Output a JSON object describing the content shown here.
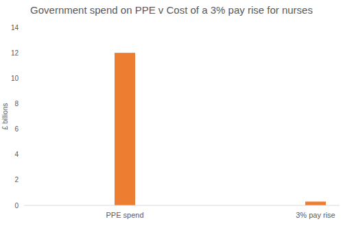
{
  "chart_data": {
    "type": "bar",
    "title": "Government spend on PPE v Cost of a 3% pay rise for nurses",
    "y_label": "£ billions",
    "categories": [
      "PPE spend",
      "3% pay rise"
    ],
    "values": [
      12,
      0.3
    ],
    "color": "#ED7D31",
    "ylim": [
      0,
      14
    ],
    "yticks": [
      0,
      2,
      4,
      6,
      8,
      10,
      12,
      14
    ],
    "grid": false
  }
}
